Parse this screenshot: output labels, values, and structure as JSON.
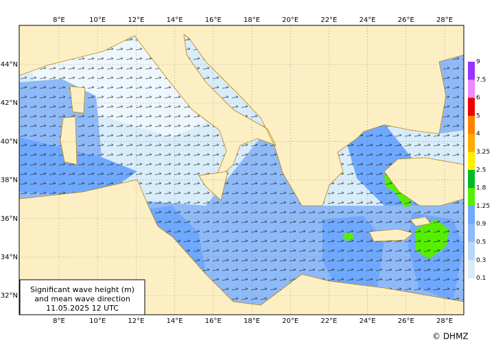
{
  "map": {
    "lon_labels": [
      "8°E",
      "10°E",
      "12°E",
      "14°E",
      "16°E",
      "18°E",
      "20°E",
      "22°E",
      "24°E",
      "26°E",
      "28°E"
    ],
    "lat_labels": [
      "44°N",
      "42°N",
      "40°N",
      "38°N",
      "36°N",
      "34°N",
      "32°N"
    ],
    "title_lines": [
      "Significant wave height (m)",
      "and mean wave direction",
      "11.05.2025 12  UTC"
    ],
    "scale": {
      "levels": [
        9,
        7.5,
        6,
        5,
        4,
        3.25,
        2.5,
        1.8,
        1.25,
        0.9,
        0.5,
        0.3,
        0.1
      ],
      "colors": [
        "#9933ff",
        "#ee88ff",
        "#ee0000",
        "#ff8000",
        "#ffaa00",
        "#ffee00",
        "#00bb22",
        "#55ee00",
        "#6fa8ff",
        "#8fbaf8",
        "#b8d6fa",
        "#d8ecfa"
      ]
    },
    "credit": "© DHMZ"
  }
}
